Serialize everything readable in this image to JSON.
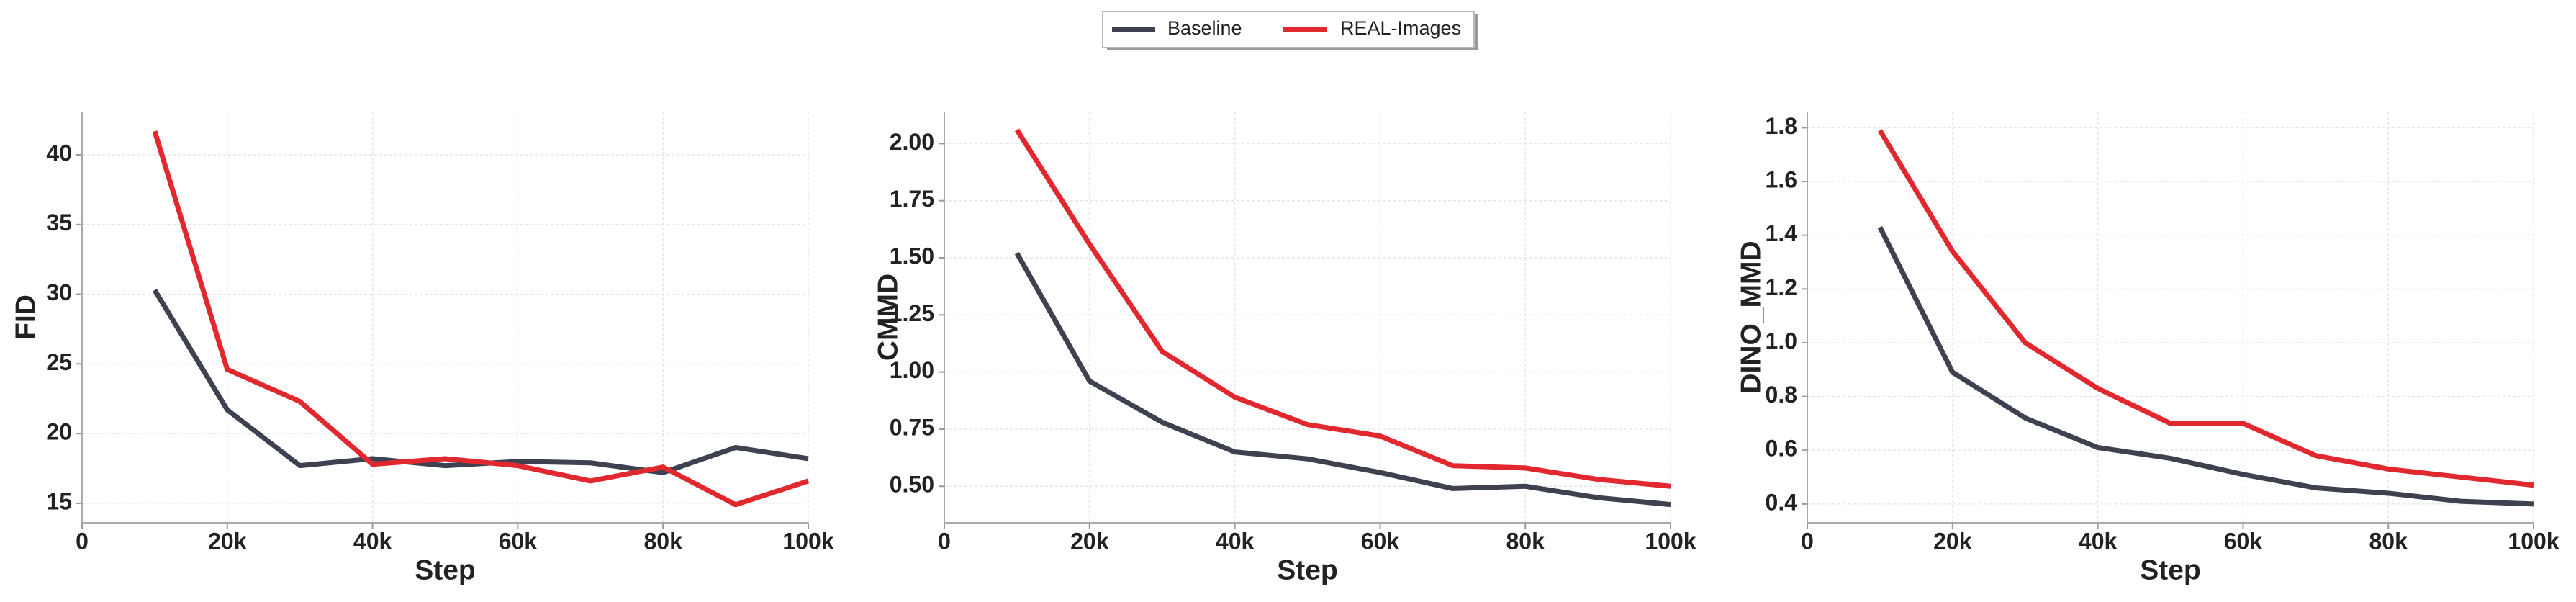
{
  "chart_data": [
    {
      "type": "line",
      "xlabel": "Step",
      "ylabel": "FID",
      "x": [
        10000,
        20000,
        30000,
        40000,
        50000,
        60000,
        70000,
        80000,
        90000,
        100000
      ],
      "series": [
        {
          "name": "Baseline",
          "color": "#3d4150",
          "values": [
            30.3,
            21.7,
            17.7,
            18.2,
            17.7,
            18.0,
            17.9,
            17.2,
            19.0,
            18.2
          ]
        },
        {
          "name": "REAL-Images",
          "color": "#e0282e",
          "values": [
            41.7,
            24.6,
            22.3,
            17.8,
            18.2,
            17.7,
            16.6,
            17.6,
            14.9,
            16.6
          ]
        }
      ],
      "xlim": [
        0,
        100000
      ],
      "xticks": [
        0,
        {
          "value": 20000,
          "label": "20k"
        },
        {
          "value": 40000,
          "label": "40k"
        },
        {
          "value": 60000,
          "label": "60k"
        },
        {
          "value": 80000,
          "label": "80k"
        },
        {
          "value": 100000,
          "label": "100k"
        }
      ],
      "ylim": [
        13.6,
        43.1
      ],
      "yticks": [
        15,
        20,
        25,
        30,
        35,
        40
      ],
      "grid": true
    },
    {
      "type": "line",
      "xlabel": "Step",
      "ylabel": "CMMD",
      "x": [
        10000,
        20000,
        30000,
        40000,
        50000,
        60000,
        70000,
        80000,
        90000,
        100000
      ],
      "series": [
        {
          "name": "Baseline",
          "color": "#3d4150",
          "values": [
            1.52,
            0.96,
            0.78,
            0.65,
            0.62,
            0.56,
            0.49,
            0.5,
            0.45,
            0.42
          ]
        },
        {
          "name": "REAL-Images",
          "color": "#e0282e",
          "values": [
            2.06,
            1.56,
            1.09,
            0.89,
            0.77,
            0.72,
            0.59,
            0.58,
            0.53,
            0.5
          ]
        }
      ],
      "xlim": [
        0,
        100000
      ],
      "xticks": [
        0,
        {
          "value": 20000,
          "label": "20k"
        },
        {
          "value": 40000,
          "label": "40k"
        },
        {
          "value": 60000,
          "label": "60k"
        },
        {
          "value": 80000,
          "label": "80k"
        },
        {
          "value": 100000,
          "label": "100k"
        }
      ],
      "ylim": [
        0.34,
        2.14
      ],
      "yticks": [
        {
          "value": 0.5,
          "label": "0.50"
        },
        0.75,
        {
          "value": 1.0,
          "label": "1.00"
        },
        1.25,
        {
          "value": 1.5,
          "label": "1.50"
        },
        1.75,
        {
          "value": 2.0,
          "label": "2.00"
        }
      ],
      "grid": true
    },
    {
      "type": "line",
      "xlabel": "Step",
      "ylabel": "DINO_MMD",
      "x": [
        10000,
        20000,
        30000,
        40000,
        50000,
        60000,
        70000,
        80000,
        90000,
        100000
      ],
      "series": [
        {
          "name": "Baseline",
          "color": "#3d4150",
          "values": [
            1.43,
            0.89,
            0.72,
            0.61,
            0.57,
            0.51,
            0.46,
            0.44,
            0.41,
            0.4
          ]
        },
        {
          "name": "REAL-Images",
          "color": "#e0282e",
          "values": [
            1.79,
            1.34,
            1.0,
            0.83,
            0.7,
            0.7,
            0.58,
            0.53,
            0.5,
            0.47
          ]
        }
      ],
      "xlim": [
        0,
        100000
      ],
      "xticks": [
        0,
        {
          "value": 20000,
          "label": "20k"
        },
        {
          "value": 40000,
          "label": "40k"
        },
        {
          "value": 60000,
          "label": "60k"
        },
        {
          "value": 80000,
          "label": "80k"
        },
        {
          "value": 100000,
          "label": "100k"
        }
      ],
      "ylim": [
        0.33,
        1.86
      ],
      "yticks": [
        0.4,
        0.6,
        0.8,
        {
          "value": 1.0,
          "label": "1.0"
        },
        1.2,
        1.4,
        1.6,
        1.8
      ],
      "grid": true
    }
  ]
}
